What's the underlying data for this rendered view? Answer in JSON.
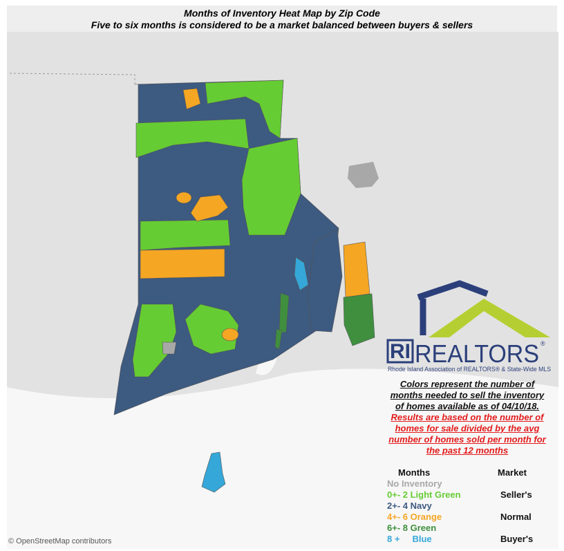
{
  "header": {
    "title": "Months of Inventory Heat Map by Zip Code",
    "subtitle": "Five to six months is considered to be a market balanced between buyers & sellers"
  },
  "logo": {
    "ri": "RI",
    "brand": "REALTORS",
    "registered": "®",
    "tagline": "Rhode Island Association of REALTORS® & State-Wide MLS"
  },
  "note": {
    "lines": [
      "Colors represent the number of",
      "months needed to sell the inventory",
      "of homes available as of 04/10/18."
    ],
    "red_lines": [
      "Results are based on the number of",
      "homes for sale divided by the avg",
      "number of homes sold per month for",
      "the past 12 months"
    ]
  },
  "legend": {
    "months_header": "Months",
    "market_header": "Market",
    "rows": [
      {
        "label": "No Inventory",
        "color": "#a8a8a8"
      },
      {
        "label": "0+- 2 Light Green",
        "color": "#66cc33",
        "market": "Seller's"
      },
      {
        "label": "2+- 4 Navy",
        "color": "#3d5a80"
      },
      {
        "label": "4+- 6 Orange",
        "color": "#f5a623",
        "market": "Normal"
      },
      {
        "label": "6+- 8 Green",
        "color": "#3f8f3f"
      },
      {
        "label": "8 +     Blue",
        "color": "#35a7d8",
        "market": "Buyer's"
      }
    ]
  },
  "attribution": "© OpenStreetMap contributors"
}
